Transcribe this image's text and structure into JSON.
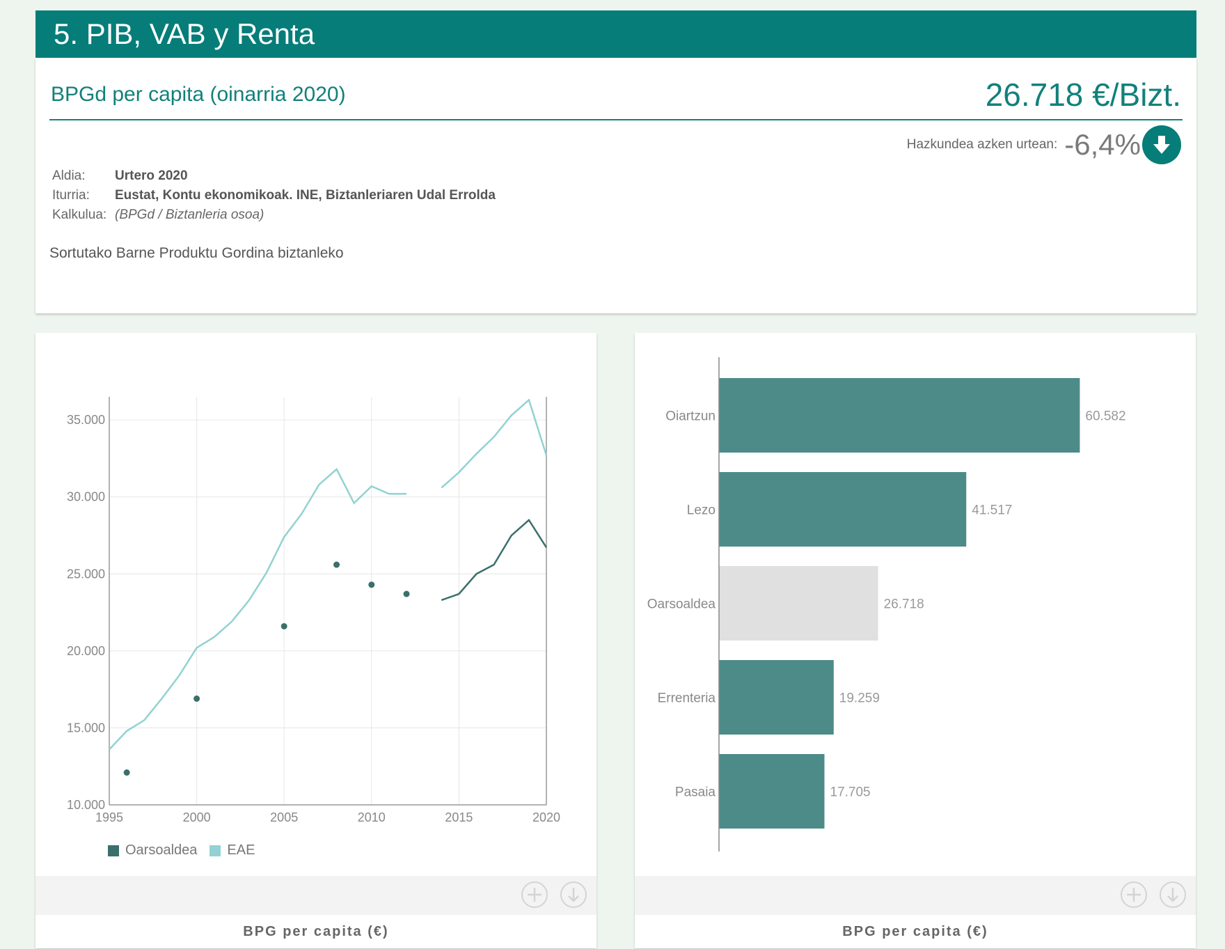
{
  "header": {
    "title": "5. PIB, VAB y Renta"
  },
  "indicator": {
    "title": "BPGd per capita (oinarria 2020)",
    "value": "26.718 €/Bizt.",
    "growth_label": "Hazkundea azken urtean:",
    "growth_value": "-6,4%",
    "growth_icon": "arrow-down-icon",
    "meta": {
      "period_label": "Aldia:",
      "period_value": "Urtero 2020",
      "source_label": "Iturria:",
      "source_value": "Eustat, Kontu ekonomikoak. INE, Biztanleriaren Udal Errolda",
      "calc_label": "Kalkulua:",
      "calc_value": "(BPGd / Biztanleria osoa)"
    },
    "description": "Sortutako Barne Produktu Gordina biztanleko"
  },
  "colors": {
    "accent": "#067d78",
    "oarsoaldea": "#3b6f6c",
    "eae": "#92d2d2",
    "bar": "#4d8b88",
    "bar_highlight": "#e0e0e0"
  },
  "chart_data": [
    {
      "type": "line",
      "caption": "BPG per capita (€)",
      "xlim": [
        1995,
        2020
      ],
      "ylim": [
        10000,
        36500
      ],
      "x_ticks": [
        1995,
        2000,
        2005,
        2010,
        2015,
        2020
      ],
      "y_ticks": [
        10000,
        15000,
        20000,
        25000,
        30000,
        35000
      ],
      "x_tick_labels": [
        "1995",
        "2000",
        "2005",
        "2010",
        "2015",
        "2020"
      ],
      "y_tick_labels": [
        "10.000",
        "15.000",
        "20.000",
        "25.000",
        "30.000",
        "35.000"
      ],
      "grid": true,
      "legend_position": "bottom-left",
      "series": [
        {
          "name": "Oarsoaldea",
          "color": "#3b6f6c",
          "points": [
            [
              1996,
              12100
            ],
            [
              2000,
              16900
            ],
            [
              2005,
              21600
            ],
            [
              2008,
              25600
            ],
            [
              2010,
              24300
            ],
            [
              2012,
              23700
            ],
            [
              2014,
              23300
            ],
            [
              2015,
              23700
            ],
            [
              2016,
              25000
            ],
            [
              2017,
              25600
            ],
            [
              2018,
              27500
            ],
            [
              2019,
              28500
            ],
            [
              2020,
              26718
            ]
          ],
          "note_markers_until": 2012
        },
        {
          "name": "EAE",
          "color": "#92d2d2",
          "segments": [
            [
              [
                1995,
                13600
              ],
              [
                1996,
                14800
              ],
              [
                1997,
                15500
              ],
              [
                1998,
                16900
              ],
              [
                1999,
                18400
              ],
              [
                2000,
                20200
              ],
              [
                2001,
                20900
              ],
              [
                2002,
                21900
              ],
              [
                2003,
                23300
              ],
              [
                2004,
                25100
              ],
              [
                2005,
                27400
              ],
              [
                2006,
                28900
              ],
              [
                2007,
                30800
              ],
              [
                2008,
                31800
              ],
              [
                2009,
                29600
              ],
              [
                2010,
                30700
              ],
              [
                2011,
                30200
              ],
              [
                2012,
                30200
              ]
            ],
            [
              [
                2014,
                30600
              ],
              [
                2015,
                31600
              ],
              [
                2016,
                32800
              ],
              [
                2017,
                33900
              ],
              [
                2018,
                35300
              ],
              [
                2019,
                36300
              ],
              [
                2020,
                32700
              ]
            ]
          ]
        }
      ]
    },
    {
      "type": "bar",
      "orientation": "horizontal",
      "caption": "BPG per capita (€)",
      "xlim": [
        0,
        70000
      ],
      "categories": [
        "Oiartzun",
        "Lezo",
        "Oarsoaldea",
        "Errenteria",
        "Pasaia"
      ],
      "values": [
        60582,
        41517,
        26718,
        19259,
        17705
      ],
      "value_labels": [
        "60.582",
        "41.517",
        "26.718",
        "19.259",
        "17.705"
      ],
      "highlight": "Oarsoaldea"
    }
  ]
}
